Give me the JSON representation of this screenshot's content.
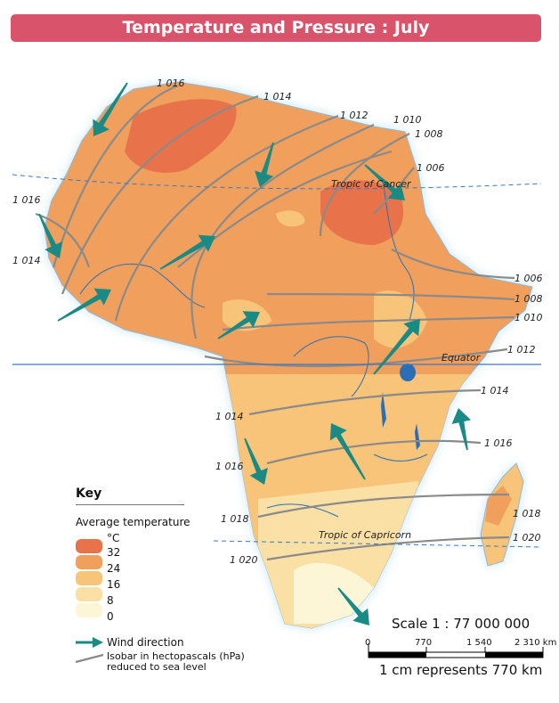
{
  "title": "Temperature and Pressure : July",
  "labels": {
    "tropic_cancer": "Tropic of Cancer",
    "equator": "Equator",
    "tropic_capricorn": "Tropic of Capricorn"
  },
  "isobars": [
    {
      "id": "i1",
      "label": "1 016"
    },
    {
      "id": "i2",
      "label": "1 014"
    },
    {
      "id": "i3",
      "label": "1 012"
    },
    {
      "id": "i4",
      "label": "1 010"
    },
    {
      "id": "i5",
      "label": "1 008"
    },
    {
      "id": "i6",
      "label": "1 006"
    },
    {
      "id": "i7",
      "label": "1 016"
    },
    {
      "id": "i8",
      "label": "1 014"
    },
    {
      "id": "i9",
      "label": "1 006"
    },
    {
      "id": "i10",
      "label": "1 008"
    },
    {
      "id": "i11",
      "label": "1 010"
    },
    {
      "id": "i12",
      "label": "1 012"
    },
    {
      "id": "i13",
      "label": "1 014"
    },
    {
      "id": "i14",
      "label": "1 014"
    },
    {
      "id": "i15",
      "label": "1 016"
    },
    {
      "id": "i16",
      "label": "1 016"
    },
    {
      "id": "i17",
      "label": "1 018"
    },
    {
      "id": "i18",
      "label": "1 018"
    },
    {
      "id": "i19",
      "label": "1 020"
    },
    {
      "id": "i20",
      "label": "1 020"
    }
  ],
  "key": {
    "title": "Key",
    "subtitle": "Average temperature",
    "unit": "°C",
    "bands": [
      {
        "label": "32",
        "color": "#e8734a"
      },
      {
        "label": "24",
        "color": "#f0a05c"
      },
      {
        "label": "16",
        "color": "#f7c47a"
      },
      {
        "label": "8",
        "color": "#fbe0a6"
      },
      {
        "label": "0",
        "color": "#fdf6d6"
      }
    ],
    "wind_label": "Wind direction",
    "isobar_label": "Isobar in hectopascals (hPa) reduced to sea level"
  },
  "scale": {
    "title": "Scale 1 : 77 000 000",
    "ticks": [
      "0",
      "770",
      "1 540",
      "2 310 km"
    ],
    "note": "1 cm represents 770 km"
  },
  "colors": {
    "banner": "#d9536a",
    "wind": "#1a8a85",
    "isobar": "#8a8a8a",
    "water": "#2a6fb6"
  }
}
